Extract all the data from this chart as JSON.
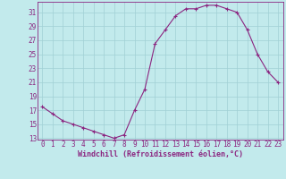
{
  "x": [
    0,
    1,
    2,
    3,
    4,
    5,
    6,
    7,
    8,
    9,
    10,
    11,
    12,
    13,
    14,
    15,
    16,
    17,
    18,
    19,
    20,
    21,
    22,
    23
  ],
  "y": [
    17.5,
    16.5,
    15.5,
    15.0,
    14.5,
    14.0,
    13.5,
    13.0,
    13.5,
    17.0,
    20.0,
    26.5,
    28.5,
    30.5,
    31.5,
    31.5,
    32.0,
    32.0,
    31.5,
    31.0,
    28.5,
    25.0,
    22.5,
    21.0
  ],
  "line_color": "#8B2580",
  "marker": "+",
  "marker_color": "#8B2580",
  "bg_color": "#c2eaec",
  "grid_color": "#a0d0d4",
  "xlabel": "Windchill (Refroidissement éolien,°C)",
  "xlabel_color": "#8B2580",
  "tick_color": "#8B2580",
  "spine_color": "#8B2580",
  "ylim": [
    13,
    32
  ],
  "yticks": [
    13,
    15,
    17,
    19,
    21,
    23,
    25,
    27,
    29,
    31
  ],
  "xticks": [
    0,
    1,
    2,
    3,
    4,
    5,
    6,
    7,
    8,
    9,
    10,
    11,
    12,
    13,
    14,
    15,
    16,
    17,
    18,
    19,
    20,
    21,
    22,
    23
  ],
  "font_size": 5.5,
  "xlabel_font_size": 6.0,
  "line_width": 0.8,
  "marker_size": 3
}
